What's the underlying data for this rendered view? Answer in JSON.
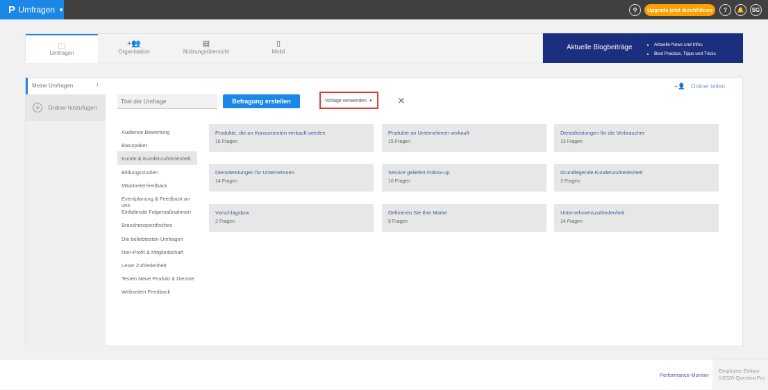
{
  "topbar": {
    "logo": "P",
    "app": "Umfragen",
    "upgrade": "Upgrade jetzt durchführen",
    "help": "?",
    "avatar": "SG",
    "icons": [
      "search-icon",
      "help-icon",
      "bell-icon"
    ]
  },
  "tabs": [
    {
      "label": "Umfragen",
      "icon": "folder-icon",
      "active": true
    },
    {
      "label": "Organisation",
      "icon": "add-users-icon"
    },
    {
      "label": "Nutzungsübersicht",
      "icon": "monitor-icon"
    },
    {
      "label": "Mobil",
      "icon": "phone-icon"
    }
  ],
  "blog": {
    "title": "Aktuelle Blogbeiträge",
    "items": [
      "Aktuelle News und Infos",
      "Best Practice, Tipps und Tricks"
    ]
  },
  "sidebar": {
    "folder": "Meine Umfragen",
    "count": "1",
    "add": "Ordner hinzufügen"
  },
  "share": "Ordner teilen",
  "form": {
    "placeholder": "Titel der Umfrage",
    "create": "Befragung erstellen",
    "template": "Vorlage verwenden"
  },
  "categories": [
    "Audience Bewertung",
    "Basispaket",
    "Kunde & Kundenzufriedenheit",
    "Bildungsstudien",
    "Mitarbeiterfeedback",
    "Eventplanung & Feedback an uns",
    "Einfallende Folgemaßnahmen",
    "Branchenspezifisches",
    "Die beliebtesten Umfragen",
    "Non-Profit & Mitgliedschaft",
    "Leser Zufriedenheit",
    "Testen Neue Produkt & Dienste",
    "Webseiten Feedback"
  ],
  "selected_category": "Kunde & Kundenzufriedenheit",
  "templates": [
    {
      "title": "Produkte, die an Konsumenten verkauft werden",
      "count": "16 Fragen"
    },
    {
      "title": "Produkte an Unternehmen verkauft",
      "count": "15 Fragen"
    },
    {
      "title": "Dienstleistungen für die Verbraucher",
      "count": "13 Fragen"
    },
    {
      "title": "Dienstleistungen für Unternehmen",
      "count": "14 Fragen"
    },
    {
      "title": "Service geliefert Follow-up",
      "count": "10 Fragen"
    },
    {
      "title": "Grundlegende Kundenzufriedenheit",
      "count": "3 Fragen"
    },
    {
      "title": "Vorschlagsbox",
      "count": "2 Fragen"
    },
    {
      "title": "Definieren Sie Ihre Marke",
      "count": "9 Fragen"
    },
    {
      "title": "Unternehmenszufriedenheit",
      "count": "14 Fragen"
    }
  ],
  "footer": {
    "link": "Performance-Monitor",
    "edition": "Employee Edition",
    "copyright": "©2020 QuestionPro"
  }
}
